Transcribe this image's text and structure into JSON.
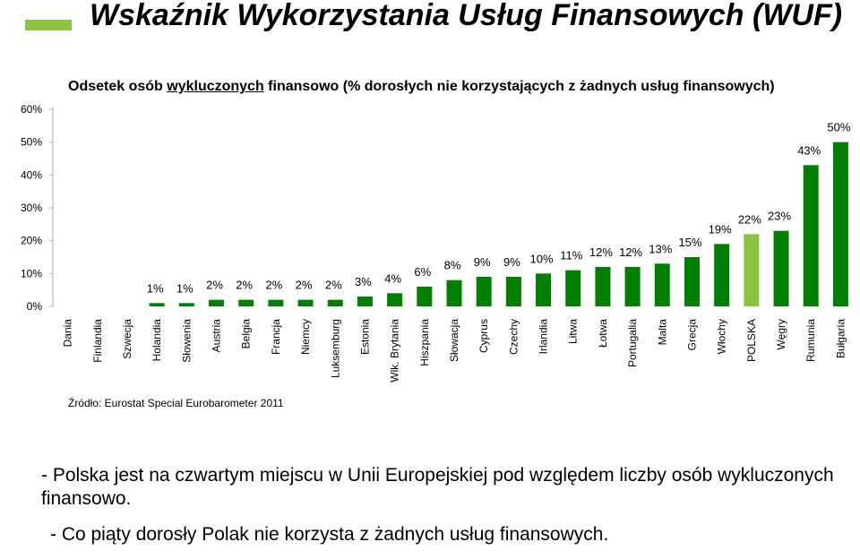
{
  "header": {
    "title": "Wskaźnik Wykorzystania Usług Finansowych (WUF)",
    "accent_color": "#8bc53f"
  },
  "chart_data": {
    "type": "bar",
    "subtitle_before": "Odsetek osób ",
    "subtitle_underlined": "wykluczonych",
    "subtitle_after": " finansowo (% dorosłych nie korzystających z żadnych usług finansowych)",
    "categories": [
      "Dania",
      "Finlandia",
      "Szwecja",
      "Holandia",
      "Słowenia",
      "Austria",
      "Belgia",
      "Francja",
      "Niemcy",
      "Luksemburg",
      "Estonia",
      "Wlk. Brytania",
      "Hiszpania",
      "Słowacja",
      "Cyprus",
      "Czechy",
      "Irlandia",
      "Litwa",
      "Łotwa",
      "Portugalia",
      "Malta",
      "Grecja",
      "Włochy",
      "POLSKA",
      "Węgry",
      "Rumunia",
      "Bułgaria"
    ],
    "values": [
      0,
      0,
      0,
      1,
      1,
      2,
      2,
      2,
      2,
      2,
      3,
      4,
      6,
      8,
      9,
      9,
      10,
      11,
      12,
      12,
      13,
      15,
      19,
      22,
      23,
      43,
      50
    ],
    "value_labels": [
      "",
      "",
      "",
      "1%",
      "1%",
      "2%",
      "2%",
      "2%",
      "2%",
      "2%",
      "3%",
      "4%",
      "6%",
      "8%",
      "9%",
      "9%",
      "10%",
      "11%",
      "12%",
      "12%",
      "13%",
      "15%",
      "19%",
      "22%",
      "23%",
      "43%",
      "50%"
    ],
    "highlight_index": 23,
    "bar_color": "#008000",
    "highlight_color": "#8bc53f",
    "y_ticks": [
      0,
      10,
      20,
      30,
      40,
      50,
      60
    ],
    "y_tick_labels": [
      "0%",
      "10%",
      "20%",
      "30%",
      "40%",
      "50%",
      "60%"
    ],
    "ylim": [
      0,
      60
    ],
    "grid": false,
    "source": "Źródło: Eurostat Special Eurobarometer 2011"
  },
  "notes": [
    "- Polska jest na czwartym miejscu w Unii Europejskiej pod względem liczby osób wykluczonych finansowo.",
    "- Co piąty dorosły Polak nie korzysta z żadnych usług finansowych."
  ]
}
